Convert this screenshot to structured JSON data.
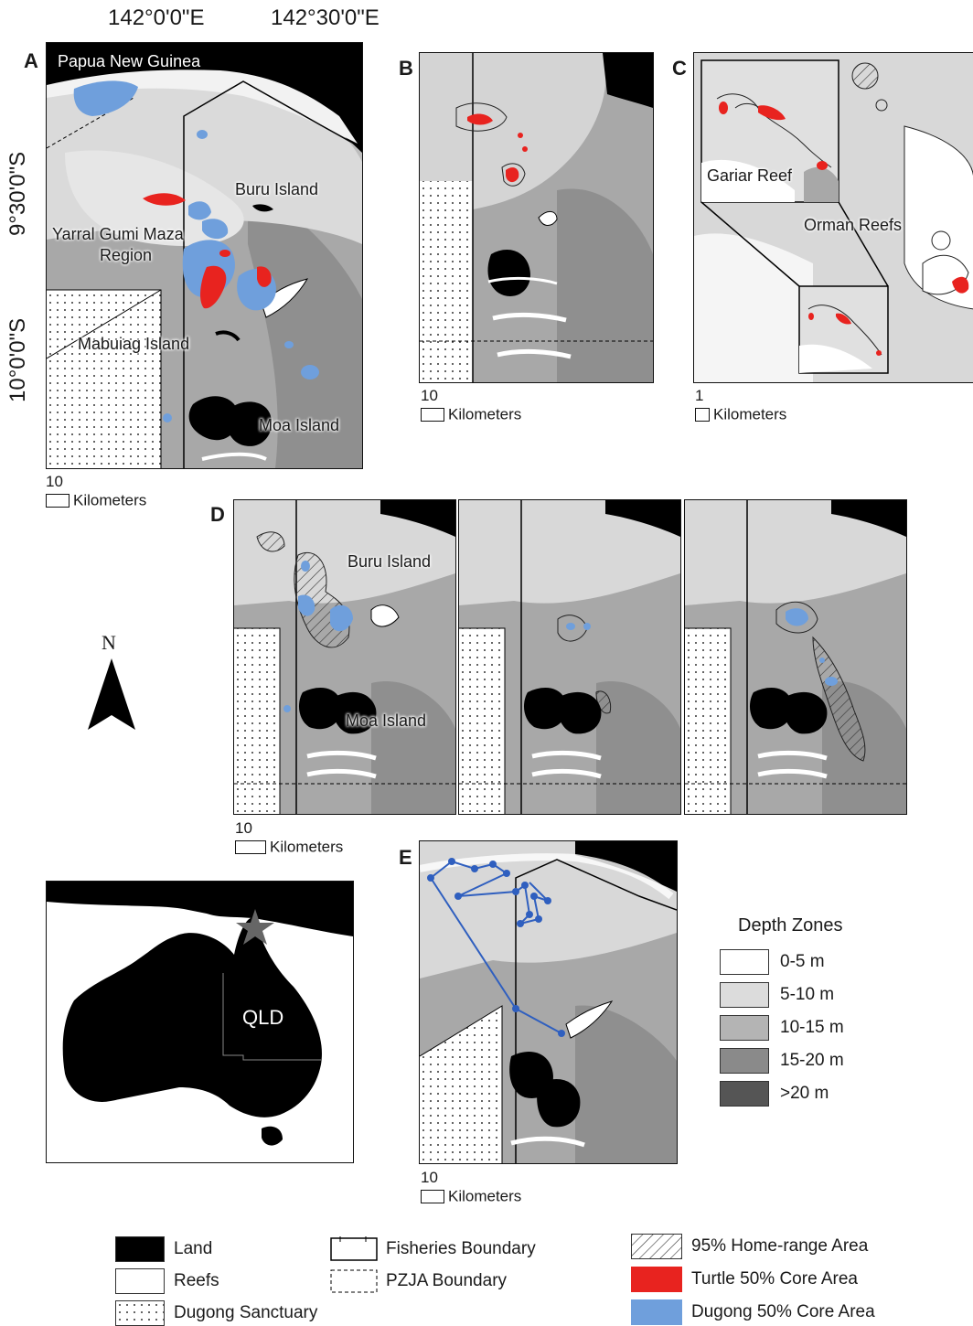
{
  "coordinates": {
    "lon_1": "142°0'0\"E",
    "lon_2": "142°30'0\"E",
    "lat_1": "9°30'0\"S",
    "lat_2": "10°0'0\"S"
  },
  "panels": {
    "a": {
      "letter": "A",
      "country": "Papua New Guinea",
      "buru": "Buru Island",
      "yarral": "Yarral Gumi Maza",
      "region": "Region",
      "mabuiag": "Mabuiag Island",
      "moa": "Moa Island",
      "scale_num": "10",
      "scale_unit": "Kilometers"
    },
    "b": {
      "letter": "B",
      "scale_num": "10",
      "scale_unit": "Kilometers"
    },
    "c": {
      "letter": "C",
      "gariar": "Gariar Reef",
      "orman": "Orman Reefs",
      "scale_num": "1",
      "scale_unit": "Kilometers"
    },
    "d": {
      "letter": "D",
      "buru": "Buru Island",
      "moa": "Moa Island",
      "scale_num": "10",
      "scale_unit": "Kilometers"
    },
    "e": {
      "letter": "E",
      "scale_num": "10",
      "scale_unit": "Kilometers"
    }
  },
  "north_arrow": "N",
  "inset": {
    "state_label": "QLD"
  },
  "depth_legend": {
    "title": "Depth Zones",
    "zones": [
      {
        "label": "0-5 m",
        "color": "#ffffff"
      },
      {
        "label": "5-10 m",
        "color": "#dcdcdc"
      },
      {
        "label": "10-15 m",
        "color": "#b4b4b4"
      },
      {
        "label": "15-20 m",
        "color": "#8a8a8a"
      },
      {
        "label": ">20 m",
        "color": "#555555"
      }
    ]
  },
  "legend": {
    "land": "Land",
    "reefs": "Reefs",
    "dugong_sanctuary": "Dugong Sanctuary",
    "fisheries_boundary": "Fisheries Boundary",
    "pzja_boundary": "PZJA Boundary",
    "home_range": "95% Home-range Area",
    "turtle_core": "Turtle 50% Core Area",
    "dugong_core": "Dugong 50% Core Area"
  },
  "colors": {
    "turtle": "#e8231f",
    "dugong": "#6f9fdc",
    "track": "#2f5fbf",
    "land": "#000000"
  }
}
